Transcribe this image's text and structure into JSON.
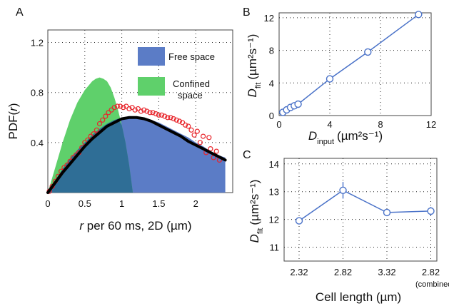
{
  "colors": {
    "free": "#5b7cc6",
    "confined": "#5fd06b",
    "overlap": "#2f6e96",
    "fit": "#000000",
    "data": "#e8252b",
    "series": "#4a72c8"
  },
  "chart_data": [
    {
      "panel": "A",
      "type": "area",
      "xlabel": "r per 60 ms, 2D (µm)",
      "ylabel": "PDF(r)",
      "xlim": [
        0,
        2.5
      ],
      "ylim": [
        0,
        1.3
      ],
      "xticks": [
        "0",
        "0.5",
        "1",
        "1.5",
        "2"
      ],
      "xtick_values": [
        0,
        0.5,
        1,
        1.5,
        2
      ],
      "yticks": [
        "0.4",
        "0.8",
        "1.2"
      ],
      "ytick_values": [
        0.4,
        0.8,
        1.2
      ],
      "grid": "dotted",
      "legend_position": "top-right",
      "legend": [
        {
          "label": "Free space",
          "color_key": "free"
        },
        {
          "label": "Confined space",
          "label_lines": [
            "Confined",
            "space"
          ],
          "color_key": "confined"
        }
      ],
      "series": [
        {
          "name": "Free space",
          "kind": "area",
          "x": [
            0,
            0.1,
            0.2,
            0.3,
            0.4,
            0.5,
            0.6,
            0.7,
            0.8,
            0.9,
            1.0,
            1.1,
            1.2,
            1.3,
            1.4,
            1.5,
            1.6,
            1.7,
            1.8,
            1.9,
            2.0,
            2.1,
            2.2,
            2.3,
            2.4
          ],
          "y": [
            0,
            0.1,
            0.19,
            0.27,
            0.34,
            0.4,
            0.46,
            0.51,
            0.55,
            0.58,
            0.6,
            0.61,
            0.61,
            0.6,
            0.58,
            0.56,
            0.53,
            0.5,
            0.47,
            0.44,
            0.4,
            0.37,
            0.33,
            0.3,
            0.28
          ]
        },
        {
          "name": "Confined space",
          "kind": "area",
          "x": [
            0,
            0.1,
            0.2,
            0.3,
            0.4,
            0.5,
            0.6,
            0.65,
            0.7,
            0.75,
            0.8,
            0.85,
            0.9,
            0.95,
            1.0,
            1.05,
            1.1,
            1.15
          ],
          "y": [
            0,
            0.2,
            0.4,
            0.58,
            0.72,
            0.82,
            0.89,
            0.91,
            0.92,
            0.91,
            0.89,
            0.84,
            0.76,
            0.66,
            0.54,
            0.4,
            0.22,
            0.0
          ]
        },
        {
          "name": "fit",
          "kind": "line",
          "x": [
            0,
            0.1,
            0.2,
            0.3,
            0.4,
            0.5,
            0.6,
            0.7,
            0.8,
            0.9,
            1.0,
            1.1,
            1.2,
            1.3,
            1.4,
            1.5,
            1.6,
            1.7,
            1.8,
            1.9,
            2.0,
            2.1,
            2.2,
            2.3,
            2.4
          ],
          "y": [
            0,
            0.08,
            0.16,
            0.23,
            0.3,
            0.37,
            0.43,
            0.48,
            0.53,
            0.56,
            0.59,
            0.6,
            0.6,
            0.59,
            0.57,
            0.54,
            0.51,
            0.48,
            0.45,
            0.41,
            0.38,
            0.35,
            0.32,
            0.29,
            0.26
          ]
        },
        {
          "name": "data",
          "kind": "scatter",
          "x": [
            0.02,
            0.06,
            0.1,
            0.14,
            0.18,
            0.22,
            0.26,
            0.3,
            0.34,
            0.38,
            0.42,
            0.46,
            0.5,
            0.54,
            0.58,
            0.62,
            0.66,
            0.7,
            0.74,
            0.78,
            0.82,
            0.86,
            0.9,
            0.94,
            0.98,
            1.02,
            1.06,
            1.1,
            1.14,
            1.18,
            1.22,
            1.26,
            1.3,
            1.34,
            1.38,
            1.42,
            1.46,
            1.5,
            1.54,
            1.58,
            1.62,
            1.66,
            1.7,
            1.74,
            1.78,
            1.82,
            1.86,
            1.9,
            1.94,
            1.98,
            2.02,
            2.06,
            2.1,
            2.14,
            2.18,
            2.2,
            2.24,
            2.28,
            2.32
          ],
          "y": [
            0.01,
            0.05,
            0.09,
            0.13,
            0.17,
            0.2,
            0.22,
            0.25,
            0.28,
            0.3,
            0.32,
            0.36,
            0.4,
            0.42,
            0.45,
            0.47,
            0.5,
            0.55,
            0.58,
            0.61,
            0.64,
            0.66,
            0.68,
            0.69,
            0.69,
            0.68,
            0.69,
            0.67,
            0.68,
            0.66,
            0.67,
            0.65,
            0.66,
            0.65,
            0.64,
            0.64,
            0.63,
            0.62,
            0.62,
            0.61,
            0.6,
            0.6,
            0.59,
            0.58,
            0.57,
            0.56,
            0.54,
            0.53,
            0.5,
            0.46,
            0.49,
            0.4,
            0.45,
            0.32,
            0.44,
            0.35,
            0.28,
            0.33,
            0.26
          ]
        }
      ]
    },
    {
      "panel": "B",
      "type": "line",
      "xlabel": "D",
      "xlabel_sub": "input",
      "xlabel_unit": "(µm²s⁻¹)",
      "ylabel": "D",
      "ylabel_sub": "fit",
      "ylabel_unit": "(µm²s⁻¹)",
      "xlim": [
        0,
        12
      ],
      "ylim": [
        0,
        12.6
      ],
      "xticks": [
        "0",
        "4",
        "8",
        "12"
      ],
      "xtick_values": [
        0,
        4,
        8,
        12
      ],
      "yticks": [
        "0",
        "4",
        "8",
        "12"
      ],
      "ytick_values": [
        0,
        4,
        8,
        12
      ],
      "grid": "dotted",
      "series": [
        {
          "x": [
            0.3,
            0.6,
            0.9,
            1.2,
            1.5,
            4.0,
            7.0,
            11.0
          ],
          "y": [
            0.4,
            0.7,
            1.0,
            1.2,
            1.4,
            4.5,
            7.8,
            12.4
          ]
        }
      ]
    },
    {
      "panel": "C",
      "type": "line",
      "xlabel": "Cell length (µm)",
      "ylabel": "D",
      "ylabel_sub": "fit",
      "ylabel_unit": "(µm²s⁻¹)",
      "categories": [
        "2.32",
        "2.82",
        "3.32",
        "2.82"
      ],
      "category_notes": [
        "",
        "",
        "",
        "(combined)"
      ],
      "ylim": [
        10.5,
        14.2
      ],
      "yticks": [
        "11",
        "12",
        "13",
        "14"
      ],
      "ytick_values": [
        11,
        12,
        13,
        14
      ],
      "grid": "dotted",
      "series": [
        {
          "values": [
            11.95,
            13.05,
            12.25,
            12.3
          ],
          "errors": [
            0.05,
            0.3,
            0.05,
            0.15
          ]
        }
      ]
    }
  ],
  "panel_letters": {
    "a": "A",
    "b": "B",
    "c": "C"
  }
}
